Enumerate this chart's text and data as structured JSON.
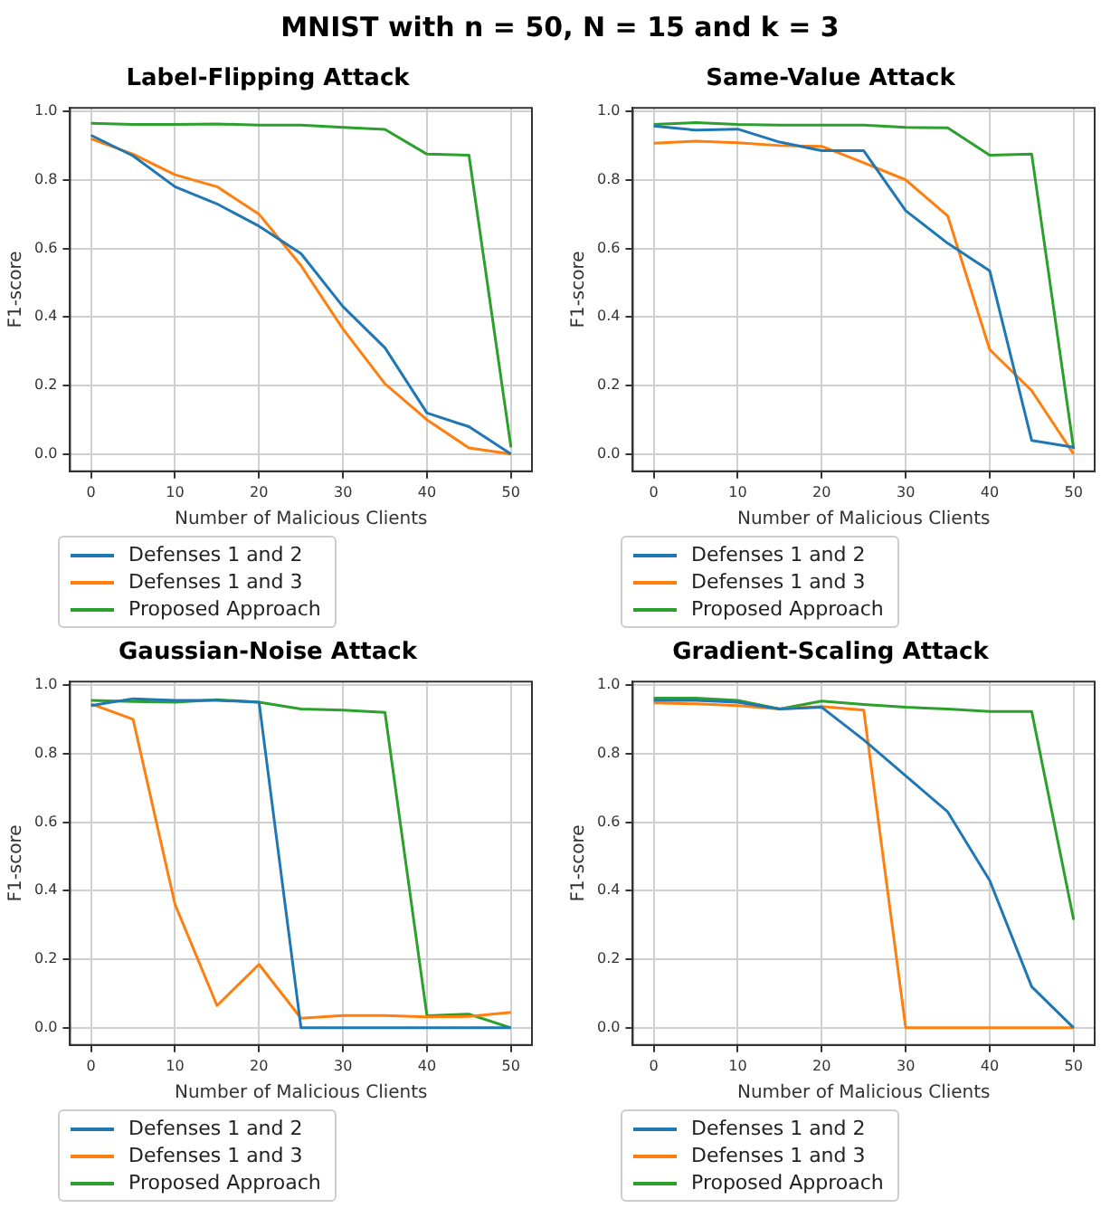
{
  "chart_data": [
    {
      "type": "line",
      "title": "Label-Flipping Attack",
      "xlabel": "Number of Malicious Clients",
      "ylabel": "F1-score",
      "annotations": [
        "MNIST with n = 50, N = 15 and k = 3"
      ],
      "x": [
        0,
        5,
        10,
        15,
        20,
        25,
        30,
        35,
        40,
        45,
        50
      ],
      "xlim": [
        -2.5,
        52.5
      ],
      "xticks": [
        0,
        10,
        20,
        30,
        40,
        50
      ],
      "ylim": [
        -0.05,
        1.01
      ],
      "yticks": [
        {
          "value": 0,
          "label": "0.0"
        },
        {
          "value": 0.2,
          "label": "0.2"
        },
        {
          "value": 0.4,
          "label": "0.4"
        },
        {
          "value": 0.6,
          "label": "0.6"
        },
        {
          "value": 0.8,
          "label": "0.8"
        },
        {
          "value": 1,
          "label": "1.0"
        }
      ],
      "grid": true,
      "legend": "bottom left",
      "marker": "none",
      "line_style": "solid",
      "series": [
        {
          "name": "Defenses 1 and 2",
          "color": "#1f77b4",
          "values": [
            0.93,
            0.87,
            0.78,
            0.73,
            0.665,
            0.585,
            0.43,
            0.31,
            0.12,
            0.08,
            0
          ]
        },
        {
          "name": "Defenses 1 and 3",
          "color": "#ff7f0e",
          "values": [
            0.92,
            0.875,
            0.815,
            0.78,
            0.7,
            0.55,
            0.365,
            0.205,
            0.1,
            0.018,
            0
          ]
        },
        {
          "name": "Proposed Approach",
          "color": "#2ca02c",
          "values": [
            0.965,
            0.962,
            0.962,
            0.963,
            0.96,
            0.96,
            0.953,
            0.947,
            0.875,
            0.872,
            0.02
          ]
        }
      ]
    },
    {
      "type": "line",
      "title": "Same-Value Attack",
      "xlabel": "Number of Malicious Clients",
      "ylabel": "F1-score",
      "x": [
        0,
        5,
        10,
        15,
        20,
        25,
        30,
        35,
        40,
        45,
        50
      ],
      "xlim": [
        -2.5,
        52.5
      ],
      "xticks": [
        0,
        10,
        20,
        30,
        40,
        50
      ],
      "ylim": [
        -0.05,
        1.01
      ],
      "yticks": [
        {
          "value": 0,
          "label": "0.0"
        },
        {
          "value": 0.2,
          "label": "0.2"
        },
        {
          "value": 0.4,
          "label": "0.4"
        },
        {
          "value": 0.6,
          "label": "0.6"
        },
        {
          "value": 0.8,
          "label": "0.8"
        },
        {
          "value": 1,
          "label": "1.0"
        }
      ],
      "grid": true,
      "legend": "bottom left",
      "marker": "none",
      "line_style": "solid",
      "series": [
        {
          "name": "Defenses 1 and 2",
          "color": "#1f77b4",
          "values": [
            0.957,
            0.945,
            0.948,
            0.91,
            0.885,
            0.885,
            0.71,
            0.615,
            0.535,
            0.04,
            0.02
          ]
        },
        {
          "name": "Defenses 1 and 3",
          "color": "#ff7f0e",
          "values": [
            0.907,
            0.913,
            0.908,
            0.9,
            0.898,
            0.85,
            0.8,
            0.695,
            0.305,
            0.185,
            0
          ]
        },
        {
          "name": "Proposed Approach",
          "color": "#2ca02c",
          "values": [
            0.962,
            0.967,
            0.962,
            0.96,
            0.96,
            0.96,
            0.953,
            0.952,
            0.872,
            0.875,
            0.015
          ]
        }
      ]
    },
    {
      "type": "line",
      "title": "Gaussian-Noise Attack",
      "xlabel": "Number of Malicious Clients",
      "ylabel": "F1-score",
      "x": [
        0,
        5,
        10,
        15,
        20,
        25,
        30,
        35,
        40,
        45,
        50
      ],
      "xlim": [
        -2.5,
        52.5
      ],
      "xticks": [
        0,
        10,
        20,
        30,
        40,
        50
      ],
      "ylim": [
        -0.05,
        1.01
      ],
      "yticks": [
        {
          "value": 0,
          "label": "0.0"
        },
        {
          "value": 0.2,
          "label": "0.2"
        },
        {
          "value": 0.4,
          "label": "0.4"
        },
        {
          "value": 0.6,
          "label": "0.6"
        },
        {
          "value": 0.8,
          "label": "0.8"
        },
        {
          "value": 1,
          "label": "1.0"
        }
      ],
      "grid": true,
      "legend": "bottom left",
      "marker": "none",
      "line_style": "solid",
      "series": [
        {
          "name": "Defenses 1 and 2",
          "color": "#1f77b4",
          "values": [
            0.94,
            0.96,
            0.955,
            0.955,
            0.95,
            0,
            0,
            0,
            0,
            0,
            0
          ]
        },
        {
          "name": "Defenses 1 and 3",
          "color": "#ff7f0e",
          "values": [
            0.945,
            0.9,
            0.36,
            0.065,
            0.185,
            0.028,
            0.036,
            0.036,
            0.032,
            0.033,
            0.045
          ]
        },
        {
          "name": "Proposed Approach",
          "color": "#2ca02c",
          "values": [
            0.955,
            0.952,
            0.95,
            0.957,
            0.95,
            0.93,
            0.927,
            0.92,
            0.035,
            0.04,
            0
          ]
        }
      ]
    },
    {
      "type": "line",
      "title": "Gradient-Scaling Attack",
      "xlabel": "Number of Malicious Clients",
      "ylabel": "F1-score",
      "x": [
        0,
        5,
        10,
        15,
        20,
        25,
        30,
        35,
        40,
        45,
        50
      ],
      "xlim": [
        -2.5,
        52.5
      ],
      "xticks": [
        0,
        10,
        20,
        30,
        40,
        50
      ],
      "ylim": [
        -0.05,
        1.01
      ],
      "yticks": [
        {
          "value": 0,
          "label": "0.0"
        },
        {
          "value": 0.2,
          "label": "0.2"
        },
        {
          "value": 0.4,
          "label": "0.4"
        },
        {
          "value": 0.6,
          "label": "0.6"
        },
        {
          "value": 0.8,
          "label": "0.8"
        },
        {
          "value": 1,
          "label": "1.0"
        }
      ],
      "grid": true,
      "legend": "bottom left",
      "marker": "none",
      "line_style": "solid",
      "series": [
        {
          "name": "Defenses 1 and 2",
          "color": "#1f77b4",
          "values": [
            0.955,
            0.955,
            0.95,
            0.93,
            0.935,
            0.84,
            0.735,
            0.63,
            0.43,
            0.12,
            0
          ]
        },
        {
          "name": "Defenses 1 and 3",
          "color": "#ff7f0e",
          "values": [
            0.948,
            0.945,
            0.94,
            0.93,
            0.937,
            0.927,
            0,
            0,
            0,
            0,
            0
          ]
        },
        {
          "name": "Proposed Approach",
          "color": "#2ca02c",
          "values": [
            0.962,
            0.962,
            0.955,
            0.93,
            0.953,
            0.943,
            0.935,
            0.93,
            0.923,
            0.923,
            0.315
          ]
        }
      ]
    }
  ]
}
